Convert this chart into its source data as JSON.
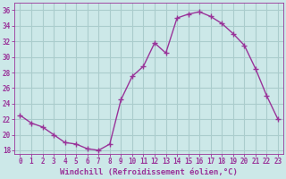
{
  "x": [
    0,
    1,
    2,
    3,
    4,
    5,
    6,
    7,
    8,
    9,
    10,
    11,
    12,
    13,
    14,
    15,
    16,
    17,
    18,
    19,
    20,
    21,
    22,
    23
  ],
  "y": [
    22.5,
    21.5,
    21.0,
    20.0,
    19.0,
    18.8,
    18.2,
    18.0,
    18.8,
    24.5,
    27.5,
    28.8,
    31.8,
    30.5,
    35.0,
    35.5,
    35.8,
    35.2,
    34.3,
    33.0,
    31.5,
    28.5,
    25.0,
    22.0
  ],
  "line_color": "#993399",
  "marker": "+",
  "marker_size": 4,
  "marker_linewidth": 1.0,
  "line_width": 1.0,
  "background_color": "#cce8e8",
  "grid_color": "#aacccc",
  "xlabel": "Windchill (Refroidissement éolien,°C)",
  "xlim": [
    -0.5,
    23.5
  ],
  "ylim": [
    17.5,
    37.0
  ],
  "yticks": [
    18,
    20,
    22,
    24,
    26,
    28,
    30,
    32,
    34,
    36
  ],
  "xticks": [
    0,
    1,
    2,
    3,
    4,
    5,
    6,
    7,
    8,
    9,
    10,
    11,
    12,
    13,
    14,
    15,
    16,
    17,
    18,
    19,
    20,
    21,
    22,
    23
  ],
  "tick_color": "#993399",
  "label_color": "#993399",
  "xlabel_fontsize": 6.5,
  "tick_fontsize": 5.5,
  "xlabel_fontweight": "bold",
  "tick_fontfamily": "monospace"
}
